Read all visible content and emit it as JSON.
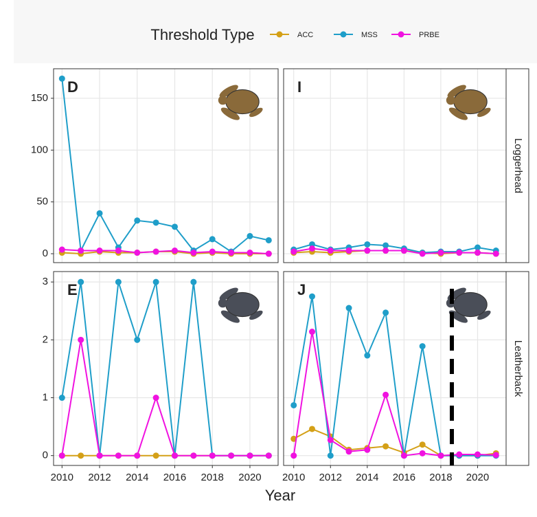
{
  "legend_title": "Threshold Type",
  "x_label": "Year",
  "facets": [
    "Loggerhead",
    "Leatherback"
  ],
  "chart_data": [
    {
      "type": "line",
      "panel_label": "D",
      "x": [
        2010,
        2011,
        2012,
        2013,
        2014,
        2015,
        2016,
        2017,
        2018,
        2019,
        2020,
        2021
      ],
      "xlim": [
        2009.55,
        2021.5
      ],
      "xticks": [
        2010,
        2012,
        2014,
        2016,
        2018,
        2020
      ],
      "ylim": [
        -8.6,
        178.5
      ],
      "yticks": [
        0,
        50,
        100,
        150
      ],
      "series": [
        {
          "name": "ACC",
          "color": "#d4a017",
          "values": [
            1,
            0,
            2,
            1,
            1,
            2,
            2,
            0,
            1,
            0,
            0,
            0
          ]
        },
        {
          "name": "MSS",
          "color": "#1f9ec9",
          "values": [
            169,
            3,
            39,
            6,
            32,
            30,
            26,
            3,
            14,
            2,
            17,
            13
          ]
        },
        {
          "name": "PRBE",
          "color": "#f012e0",
          "values": [
            4,
            3,
            3,
            3,
            1,
            2,
            3,
            1,
            2,
            1,
            1,
            0
          ]
        }
      ]
    },
    {
      "type": "line",
      "panel_label": "I",
      "x": [
        2010,
        2011,
        2012,
        2013,
        2014,
        2015,
        2016,
        2017,
        2018,
        2019,
        2020,
        2021
      ],
      "xlim": [
        2009.45,
        2021.55
      ],
      "xticks": [
        2010,
        2012,
        2014,
        2016,
        2018,
        2020
      ],
      "ylim": [
        -8.6,
        178.5
      ],
      "yticks": [
        0,
        50,
        100,
        150
      ],
      "series": [
        {
          "name": "ACC",
          "color": "#d4a017",
          "values": [
            1,
            2,
            1,
            2,
            3,
            3,
            3,
            1,
            0,
            1,
            1,
            0
          ]
        },
        {
          "name": "MSS",
          "color": "#1f9ec9",
          "values": [
            4,
            9,
            4,
            6,
            9,
            8,
            5,
            1,
            2,
            2,
            6,
            3
          ]
        },
        {
          "name": "PRBE",
          "color": "#f012e0",
          "values": [
            2,
            5,
            3,
            3,
            3,
            3,
            3,
            0,
            1,
            1,
            1,
            0
          ]
        }
      ]
    },
    {
      "type": "line",
      "panel_label": "E",
      "x": [
        2010,
        2011,
        2012,
        2013,
        2014,
        2015,
        2016,
        2017,
        2018,
        2019,
        2020,
        2021
      ],
      "xlim": [
        2009.55,
        2021.5
      ],
      "xticks": [
        2010,
        2012,
        2014,
        2016,
        2018,
        2020
      ],
      "ylim": [
        -0.17,
        3.18
      ],
      "yticks": [
        0,
        1,
        2,
        3
      ],
      "series": [
        {
          "name": "ACC",
          "color": "#d4a017",
          "values": [
            0,
            0,
            0,
            0,
            0,
            0,
            0,
            0,
            0,
            0,
            0,
            0
          ]
        },
        {
          "name": "MSS",
          "color": "#1f9ec9",
          "values": [
            1,
            3,
            0,
            3,
            2,
            3,
            0,
            3,
            0,
            0,
            0,
            0
          ]
        },
        {
          "name": "PRBE",
          "color": "#f012e0",
          "values": [
            0,
            2,
            0,
            0,
            0,
            1,
            0,
            0,
            0,
            0,
            0,
            0
          ]
        }
      ]
    },
    {
      "type": "line",
      "panel_label": "J",
      "x": [
        2010,
        2011,
        2012,
        2013,
        2014,
        2015,
        2016,
        2017,
        2018,
        2019,
        2020,
        2021
      ],
      "xlim": [
        2009.45,
        2021.55
      ],
      "xticks": [
        2010,
        2012,
        2014,
        2016,
        2018,
        2020
      ],
      "ylim": [
        -0.17,
        3.18
      ],
      "yticks": [
        0,
        1,
        2,
        3
      ],
      "vline_x": 2018.6,
      "series": [
        {
          "name": "ACC",
          "color": "#d4a017",
          "values": [
            0.29,
            0.46,
            0.33,
            0.1,
            0.13,
            0.16,
            0.05,
            0.19,
            0,
            0,
            0,
            0.04
          ]
        },
        {
          "name": "MSS",
          "color": "#1f9ec9",
          "values": [
            0.87,
            2.75,
            0,
            2.55,
            1.73,
            2.47,
            0,
            1.89,
            0,
            0,
            0,
            0
          ]
        },
        {
          "name": "PRBE",
          "color": "#f012e0",
          "values": [
            0,
            2.14,
            0.27,
            0.07,
            0.1,
            1.05,
            0,
            0.04,
            0,
            0.02,
            0.02,
            0.01
          ]
        }
      ]
    }
  ]
}
